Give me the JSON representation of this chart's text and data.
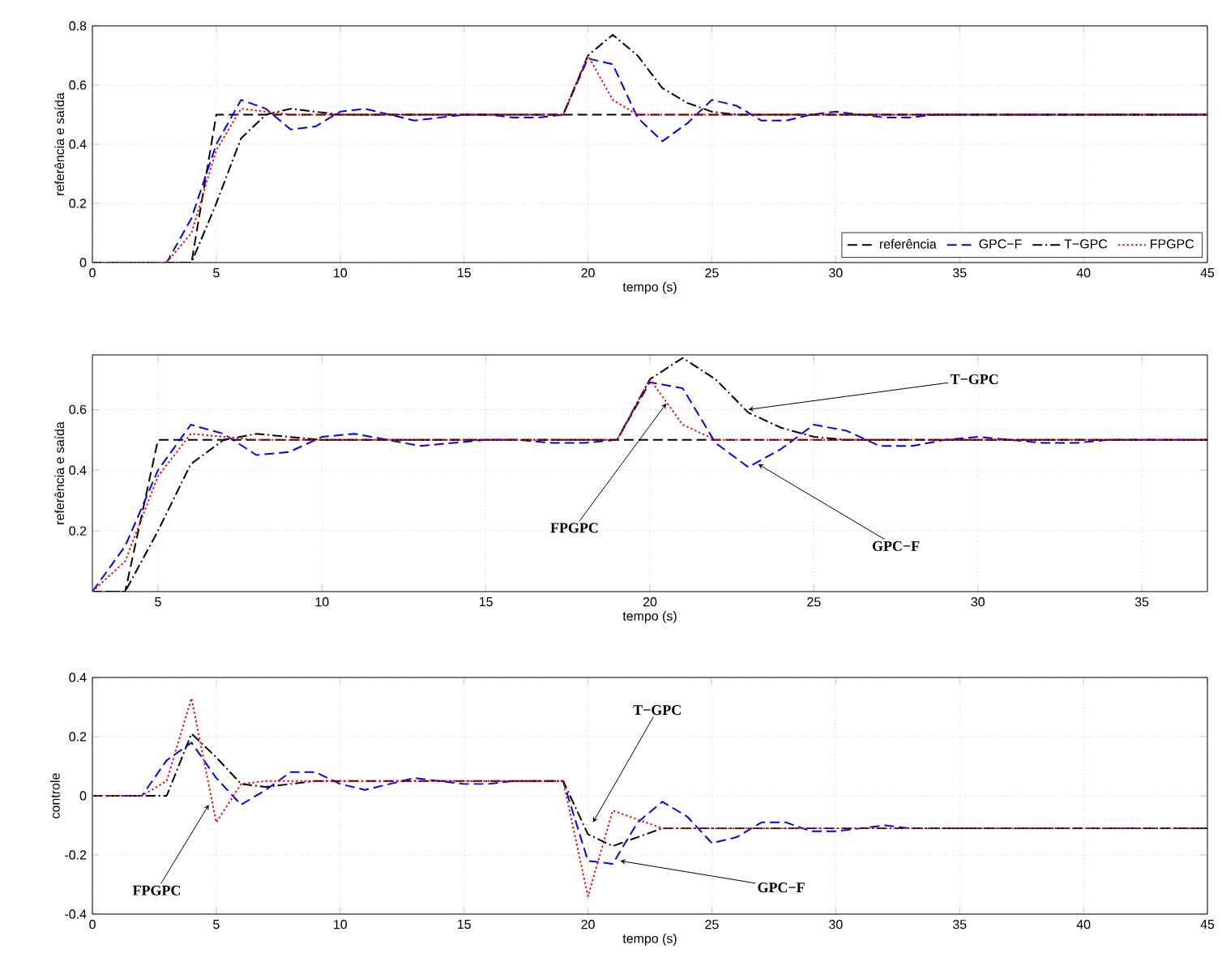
{
  "chart_data": [
    {
      "type": "line",
      "xlabel": "tempo (s)",
      "ylabel": "referência e saída",
      "xlim": [
        0,
        45
      ],
      "ylim": [
        0,
        0.8
      ],
      "xticks": [
        0,
        5,
        10,
        15,
        20,
        25,
        30,
        35,
        40,
        45
      ],
      "yticks": [
        0,
        0.2,
        0.4,
        0.6,
        0.8
      ],
      "grid": true,
      "legend": "bottom right",
      "x": [
        0,
        1,
        2,
        3,
        4,
        5,
        6,
        7,
        8,
        9,
        10,
        11,
        12,
        13,
        14,
        15,
        16,
        17,
        18,
        19,
        20,
        21,
        22,
        23,
        24,
        25,
        26,
        27,
        28,
        29,
        30,
        31,
        32,
        33,
        34,
        35,
        36,
        37,
        38,
        39,
        40,
        41,
        42,
        43,
        44,
        45
      ],
      "series": [
        {
          "name": "referência",
          "color": "#000000",
          "line_style": "dashed",
          "values": [
            0,
            0,
            0,
            0,
            0,
            0.5,
            0.5,
            0.5,
            0.5,
            0.5,
            0.5,
            0.5,
            0.5,
            0.5,
            0.5,
            0.5,
            0.5,
            0.5,
            0.5,
            0.5,
            0.5,
            0.5,
            0.5,
            0.5,
            0.5,
            0.5,
            0.5,
            0.5,
            0.5,
            0.5,
            0.5,
            0.5,
            0.5,
            0.5,
            0.5,
            0.5,
            0.5,
            0.5,
            0.5,
            0.5,
            0.5,
            0.5,
            0.5,
            0.5,
            0.5,
            0.5
          ]
        },
        {
          "name": "GPC−F",
          "color": "#0000ff",
          "line_style": "dashed",
          "values": [
            0,
            0,
            0,
            0,
            0.15,
            0.4,
            0.55,
            0.52,
            0.45,
            0.46,
            0.51,
            0.52,
            0.5,
            0.48,
            0.49,
            0.5,
            0.5,
            0.49,
            0.49,
            0.5,
            0.69,
            0.67,
            0.49,
            0.41,
            0.47,
            0.55,
            0.53,
            0.48,
            0.48,
            0.5,
            0.51,
            0.5,
            0.49,
            0.49,
            0.5,
            0.5,
            0.5,
            0.5,
            0.5,
            0.5,
            0.5,
            0.5,
            0.5,
            0.5,
            0.5,
            0.5
          ]
        },
        {
          "name": "T−GPC",
          "color": "#000000",
          "line_style": "dashdot",
          "values": [
            0,
            0,
            0,
            0,
            0,
            0.2,
            0.42,
            0.5,
            0.52,
            0.51,
            0.5,
            0.5,
            0.5,
            0.5,
            0.5,
            0.5,
            0.5,
            0.5,
            0.5,
            0.5,
            0.7,
            0.77,
            0.7,
            0.59,
            0.54,
            0.51,
            0.5,
            0.5,
            0.5,
            0.5,
            0.5,
            0.5,
            0.5,
            0.5,
            0.5,
            0.5,
            0.5,
            0.5,
            0.5,
            0.5,
            0.5,
            0.5,
            0.5,
            0.5,
            0.5,
            0.5
          ]
        },
        {
          "name": "FPGPC",
          "color": "#ff0000",
          "line_style": "dotted",
          "values": [
            0,
            0,
            0,
            0,
            0.1,
            0.38,
            0.52,
            0.51,
            0.5,
            0.5,
            0.5,
            0.5,
            0.5,
            0.5,
            0.5,
            0.5,
            0.5,
            0.5,
            0.5,
            0.5,
            0.7,
            0.55,
            0.5,
            0.5,
            0.5,
            0.5,
            0.5,
            0.5,
            0.5,
            0.5,
            0.5,
            0.5,
            0.5,
            0.5,
            0.5,
            0.5,
            0.5,
            0.5,
            0.5,
            0.5,
            0.5,
            0.5,
            0.5,
            0.5,
            0.5,
            0.5
          ]
        }
      ]
    },
    {
      "type": "line",
      "xlabel": "tempo (s)",
      "ylabel": "referência e saída",
      "xlim": [
        3,
        37
      ],
      "ylim": [
        0,
        0.78
      ],
      "xticks": [
        5,
        10,
        15,
        20,
        25,
        30,
        35
      ],
      "yticks": [
        0.2,
        0.4,
        0.6
      ],
      "grid": true,
      "x": [
        3,
        4,
        5,
        6,
        7,
        8,
        9,
        10,
        11,
        12,
        13,
        14,
        15,
        16,
        17,
        18,
        19,
        20,
        21,
        22,
        23,
        24,
        25,
        26,
        27,
        28,
        29,
        30,
        31,
        32,
        33,
        34,
        35,
        36,
        37
      ],
      "series": [
        {
          "color": "#000000",
          "line_style": "dashed",
          "values": [
            0,
            0,
            0.5,
            0.5,
            0.5,
            0.5,
            0.5,
            0.5,
            0.5,
            0.5,
            0.5,
            0.5,
            0.5,
            0.5,
            0.5,
            0.5,
            0.5,
            0.5,
            0.5,
            0.5,
            0.5,
            0.5,
            0.5,
            0.5,
            0.5,
            0.5,
            0.5,
            0.5,
            0.5,
            0.5,
            0.5,
            0.5,
            0.5,
            0.5,
            0.5
          ]
        },
        {
          "color": "#0000ff",
          "line_style": "dashed",
          "values": [
            0,
            0.15,
            0.4,
            0.55,
            0.52,
            0.45,
            0.46,
            0.51,
            0.52,
            0.5,
            0.48,
            0.49,
            0.5,
            0.5,
            0.49,
            0.49,
            0.5,
            0.69,
            0.67,
            0.49,
            0.41,
            0.47,
            0.55,
            0.53,
            0.48,
            0.48,
            0.5,
            0.51,
            0.5,
            0.49,
            0.49,
            0.5,
            0.5,
            0.5,
            0.5
          ]
        },
        {
          "color": "#000000",
          "line_style": "dashdot",
          "values": [
            0,
            0,
            0.2,
            0.42,
            0.5,
            0.52,
            0.51,
            0.5,
            0.5,
            0.5,
            0.5,
            0.5,
            0.5,
            0.5,
            0.5,
            0.5,
            0.5,
            0.7,
            0.77,
            0.7,
            0.59,
            0.54,
            0.51,
            0.5,
            0.5,
            0.5,
            0.5,
            0.5,
            0.5,
            0.5,
            0.5,
            0.5,
            0.5,
            0.5,
            0.5
          ]
        },
        {
          "color": "#ff0000",
          "line_style": "dotted",
          "values": [
            0,
            0.1,
            0.38,
            0.52,
            0.51,
            0.5,
            0.5,
            0.5,
            0.5,
            0.5,
            0.5,
            0.5,
            0.5,
            0.5,
            0.5,
            0.5,
            0.5,
            0.7,
            0.55,
            0.5,
            0.5,
            0.5,
            0.5,
            0.5,
            0.5,
            0.5,
            0.5,
            0.5,
            0.5,
            0.5,
            0.5,
            0.5,
            0.5,
            0.5,
            0.5
          ]
        }
      ],
      "annotations": [
        {
          "text": "T−GPC",
          "x": 23,
          "y": 0.6
        },
        {
          "text": "FPGPC",
          "x": 20.5,
          "y": 0.62
        },
        {
          "text": "GPC−F",
          "x": 23.3,
          "y": 0.42
        }
      ]
    },
    {
      "type": "line",
      "xlabel": "tempo (s)",
      "ylabel": "controle",
      "xlim": [
        0,
        45
      ],
      "ylim": [
        -0.4,
        0.4
      ],
      "xticks": [
        0,
        5,
        10,
        15,
        20,
        25,
        30,
        35,
        40,
        45
      ],
      "yticks": [
        -0.4,
        -0.2,
        0,
        0.2,
        0.4
      ],
      "grid": true,
      "x": [
        0,
        1,
        2,
        3,
        4,
        5,
        6,
        7,
        8,
        9,
        10,
        11,
        12,
        13,
        14,
        15,
        16,
        17,
        18,
        19,
        20,
        21,
        22,
        23,
        24,
        25,
        26,
        27,
        28,
        29,
        30,
        31,
        32,
        33,
        34,
        35,
        36,
        37,
        38,
        39,
        40,
        41,
        42,
        43,
        44,
        45
      ],
      "series": [
        {
          "color": "#0000ff",
          "line_style": "dashed",
          "values": [
            0,
            0,
            0,
            0.12,
            0.18,
            0.06,
            -0.03,
            0.02,
            0.08,
            0.08,
            0.04,
            0.02,
            0.04,
            0.06,
            0.05,
            0.04,
            0.04,
            0.05,
            0.05,
            0.05,
            -0.22,
            -0.23,
            -0.09,
            -0.02,
            -0.07,
            -0.16,
            -0.14,
            -0.09,
            -0.09,
            -0.12,
            -0.12,
            -0.11,
            -0.1,
            -0.11,
            -0.11,
            -0.11,
            -0.11,
            -0.11,
            -0.11,
            -0.11,
            -0.11,
            -0.11,
            -0.11,
            -0.11,
            -0.11,
            -0.11
          ]
        },
        {
          "color": "#000000",
          "line_style": "dashdot",
          "values": [
            0,
            0,
            0,
            0,
            0.21,
            0.13,
            0.04,
            0.03,
            0.04,
            0.05,
            0.05,
            0.05,
            0.05,
            0.05,
            0.05,
            0.05,
            0.05,
            0.05,
            0.05,
            0.05,
            -0.13,
            -0.17,
            -0.14,
            -0.11,
            -0.11,
            -0.11,
            -0.11,
            -0.11,
            -0.11,
            -0.11,
            -0.11,
            -0.11,
            -0.11,
            -0.11,
            -0.11,
            -0.11,
            -0.11,
            -0.11,
            -0.11,
            -0.11,
            -0.11,
            -0.11,
            -0.11,
            -0.11,
            -0.11,
            -0.11
          ]
        },
        {
          "color": "#ff0000",
          "line_style": "dotted",
          "values": [
            0,
            0,
            0,
            0.05,
            0.33,
            -0.09,
            0.04,
            0.05,
            0.05,
            0.05,
            0.05,
            0.05,
            0.05,
            0.05,
            0.05,
            0.05,
            0.05,
            0.05,
            0.05,
            0.05,
            -0.34,
            -0.05,
            -0.08,
            -0.11,
            -0.11,
            -0.11,
            -0.11,
            -0.11,
            -0.11,
            -0.11,
            -0.11,
            -0.11,
            -0.11,
            -0.11,
            -0.11,
            -0.11,
            -0.11,
            -0.11,
            -0.11,
            -0.11,
            -0.11,
            -0.11,
            -0.11,
            -0.11,
            -0.11,
            -0.11
          ]
        }
      ],
      "annotations": [
        {
          "text": "FPGPC",
          "x": 4.7,
          "y": -0.03
        },
        {
          "text": "T−GPC",
          "x": 20.2,
          "y": -0.09
        },
        {
          "text": "GPC−F",
          "x": 21.3,
          "y": -0.22
        }
      ]
    }
  ]
}
